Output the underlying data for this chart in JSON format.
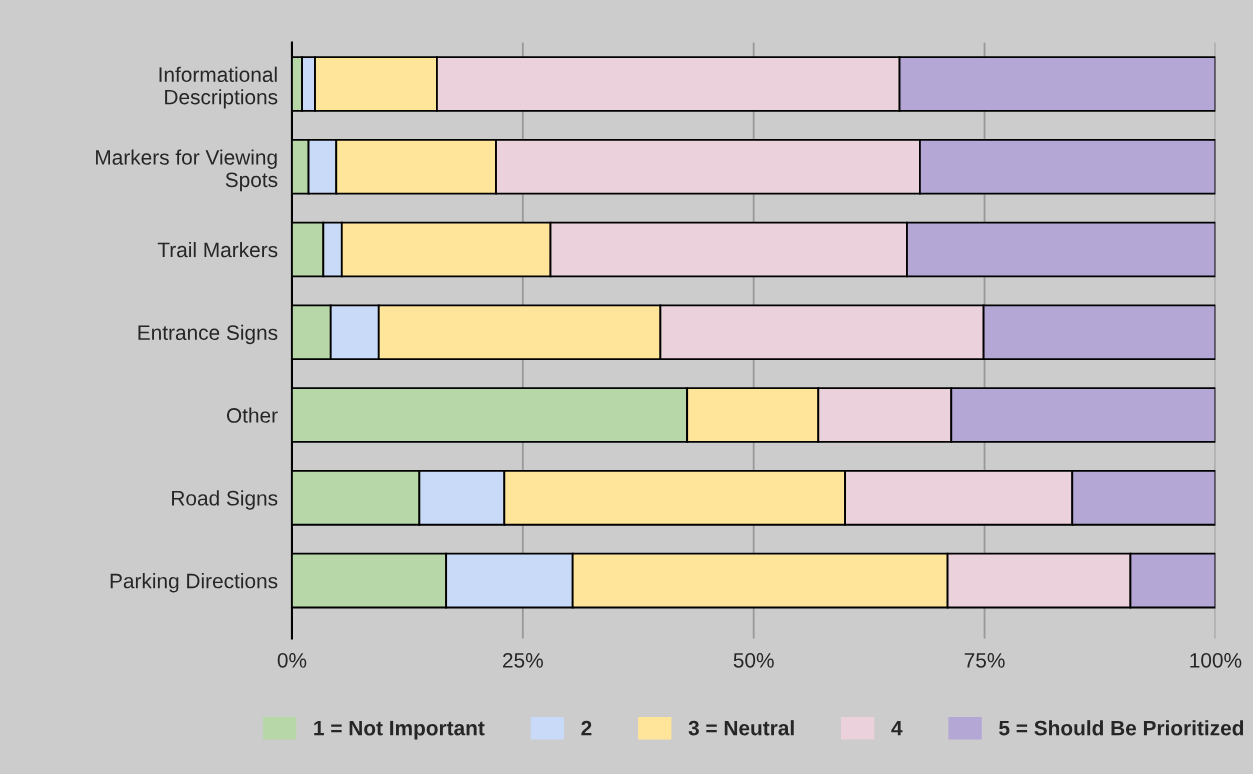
{
  "chart_data": {
    "type": "bar",
    "orientation": "horizontal",
    "stacked": true,
    "categories": [
      "Informational\nDescriptions",
      "Markers for Viewing\nSpots",
      "Trail Markers",
      "Entrance Signs",
      "Other",
      "Road Signs",
      "Parking Directions"
    ],
    "series": [
      {
        "name": "1 = Not Important",
        "color": "#b7d7a8",
        "values": [
          1.1,
          1.8,
          3.4,
          4.2,
          42.8,
          13.8,
          16.7
        ]
      },
      {
        "name": "2",
        "color": "#c9daf8",
        "values": [
          1.4,
          3.0,
          2.0,
          5.2,
          0,
          9.2,
          13.7
        ]
      },
      {
        "name": "3 = Neutral",
        "color": "#ffe599",
        "values": [
          13.2,
          17.3,
          22.6,
          30.5,
          14.2,
          36.9,
          40.6
        ]
      },
      {
        "name": "4",
        "color": "#ead1dc",
        "values": [
          50.1,
          45.9,
          38.6,
          35.0,
          14.4,
          24.6,
          19.8
        ]
      },
      {
        "name": "5 = Should Be Prioritized",
        "color": "#b4a7d6",
        "values": [
          34.2,
          32.0,
          33.4,
          25.1,
          28.6,
          15.5,
          9.2
        ]
      }
    ],
    "xlim": [
      0,
      100
    ],
    "xticks": [
      {
        "value": 0,
        "label": "0%"
      },
      {
        "value": 25,
        "label": "25%"
      },
      {
        "value": 50,
        "label": "50%"
      },
      {
        "value": 75,
        "label": "75%"
      },
      {
        "value": 100,
        "label": "100%"
      }
    ],
    "grid": "x",
    "legend": "bottom"
  }
}
